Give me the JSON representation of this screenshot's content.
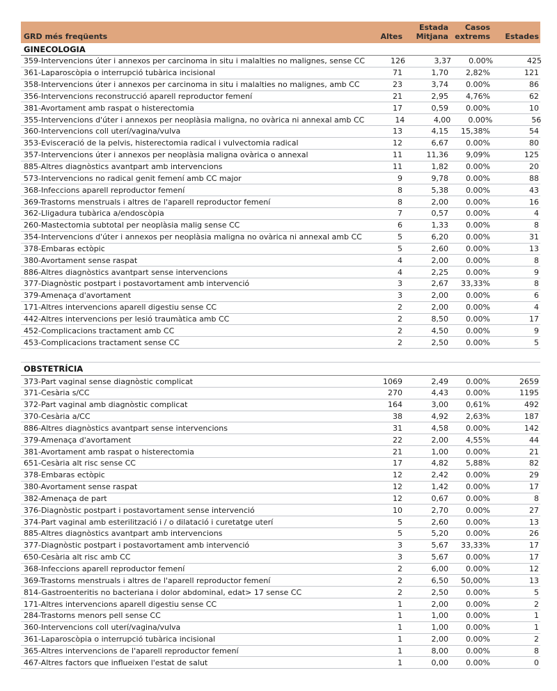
{
  "table": {
    "header_bg": "#E0A67E",
    "columns": {
      "grd": "GRD més freqüents",
      "altes": "Altes",
      "estada_line1": "Estada",
      "estada_line2": "Mitjana",
      "casos_line1": "Casos",
      "casos_line2": "extrems",
      "estades": "Estades"
    },
    "sections": [
      {
        "title": "GINECOLOGIA",
        "rows": [
          {
            "name": "359-Intervencions úter i annexos per carcinoma  in situ i malalties no malignes, sense CC",
            "altes": "126",
            "estada_mitjana": "3,37",
            "casos_extrems": "0.00%",
            "estades": "425"
          },
          {
            "name": "361-Laparoscòpia o interrupció tubàrica incisional",
            "altes": "71",
            "estada_mitjana": "1,70",
            "casos_extrems": "2,82%",
            "estades": "121"
          },
          {
            "name": "358-Intervencions úter i annexos per carcinoma  in situ i malalties no malignes, amb CC",
            "altes": "23",
            "estada_mitjana": "3,74",
            "casos_extrems": "0.00%",
            "estades": "86"
          },
          {
            "name": "356-Intervencions reconstrucció aparell reproductor femení",
            "altes": "21",
            "estada_mitjana": "2,95",
            "casos_extrems": "4,76%",
            "estades": "62"
          },
          {
            "name": "381-Avortament amb raspat o histerectomia",
            "altes": "17",
            "estada_mitjana": "0,59",
            "casos_extrems": "0.00%",
            "estades": "10"
          },
          {
            "name": "355-Intervencions d'úter i annexos per neoplàsia maligna, no ovàrica ni annexal amb CC",
            "altes": "14",
            "estada_mitjana": "4,00",
            "casos_extrems": "0.00%",
            "estades": "56"
          },
          {
            "name": "360-Intervencions coll uterí/vagina/vulva",
            "altes": "13",
            "estada_mitjana": "4,15",
            "casos_extrems": "15,38%",
            "estades": "54"
          },
          {
            "name": "353-Evisceració de la pelvis, histerectomia radical i vulvectomia radical",
            "altes": "12",
            "estada_mitjana": "6,67",
            "casos_extrems": "0.00%",
            "estades": "80"
          },
          {
            "name": "357-Intervencions úter i annexos per neoplàsia maligna ovàrica o annexal",
            "altes": "11",
            "estada_mitjana": "11,36",
            "casos_extrems": "9,09%",
            "estades": "125"
          },
          {
            "name": "885-Altres diagnòstics avantpart amb intervencions",
            "altes": "11",
            "estada_mitjana": "1,82",
            "casos_extrems": "0.00%",
            "estades": "20"
          },
          {
            "name": "573-Intervencions no radical genit femení amb CC major",
            "altes": "9",
            "estada_mitjana": "9,78",
            "casos_extrems": "0.00%",
            "estades": "88"
          },
          {
            "name": "368-Infeccions aparell reproductor femení",
            "altes": "8",
            "estada_mitjana": "5,38",
            "casos_extrems": "0.00%",
            "estades": "43"
          },
          {
            "name": "369-Trastorns menstruals i altres de l'aparell reproductor femení",
            "altes": "8",
            "estada_mitjana": "2,00",
            "casos_extrems": "0.00%",
            "estades": "16"
          },
          {
            "name": "362-Lligadura tubàrica a/endoscòpia",
            "altes": "7",
            "estada_mitjana": "0,57",
            "casos_extrems": "0.00%",
            "estades": "4"
          },
          {
            "name": "260-Mastectomia subtotal per neoplàsia malig sense CC",
            "altes": "6",
            "estada_mitjana": "1,33",
            "casos_extrems": "0.00%",
            "estades": "8"
          },
          {
            "name": "354-Intervencions d'úter i annexos per neoplàsia maligna no ovàrica ni annexal amb CC",
            "altes": "5",
            "estada_mitjana": "6,20",
            "casos_extrems": "0.00%",
            "estades": "31"
          },
          {
            "name": "378-Embaras ectòpic",
            "altes": "5",
            "estada_mitjana": "2,60",
            "casos_extrems": "0.00%",
            "estades": "13"
          },
          {
            "name": "380-Avortament sense raspat",
            "altes": "4",
            "estada_mitjana": "2,00",
            "casos_extrems": "0.00%",
            "estades": "8"
          },
          {
            "name": "886-Altres diagnòstics avantpart sense intervencions",
            "altes": "4",
            "estada_mitjana": "2,25",
            "casos_extrems": "0.00%",
            "estades": "9"
          },
          {
            "name": "377-Diagnòstic postpart i postavortament amb intervenció",
            "altes": "3",
            "estada_mitjana": "2,67",
            "casos_extrems": "33,33%",
            "estades": "8"
          },
          {
            "name": "379-Amenaça d'avortament",
            "altes": "3",
            "estada_mitjana": "2,00",
            "casos_extrems": "0.00%",
            "estades": "6"
          },
          {
            "name": "171-Altres intervencions aparell digestiu sense CC",
            "altes": "2",
            "estada_mitjana": "2,00",
            "casos_extrems": "0.00%",
            "estades": "4"
          },
          {
            "name": "442-Altres intervencions per lesió traumàtica amb CC",
            "altes": "2",
            "estada_mitjana": "8,50",
            "casos_extrems": "0.00%",
            "estades": "17"
          },
          {
            "name": "452-Complicacions tractament amb CC",
            "altes": "2",
            "estada_mitjana": "4,50",
            "casos_extrems": "0.00%",
            "estades": "9"
          },
          {
            "name": "453-Complicacions tractament sense CC",
            "altes": "2",
            "estada_mitjana": "2,50",
            "casos_extrems": "0.00%",
            "estades": "5"
          }
        ]
      },
      {
        "title": "OBSTETRÍCIA",
        "rows": [
          {
            "name": "373-Part vaginal sense diagnòstic complicat",
            "altes": "1069",
            "estada_mitjana": "2,49",
            "casos_extrems": "0.00%",
            "estades": "2659"
          },
          {
            "name": "371-Cesària s/CC",
            "altes": "270",
            "estada_mitjana": "4,43",
            "casos_extrems": "0.00%",
            "estades": "1195"
          },
          {
            "name": "372-Part vaginal amb diagnòstic complicat",
            "altes": "164",
            "estada_mitjana": "3,00",
            "casos_extrems": "0,61%",
            "estades": "492"
          },
          {
            "name": "370-Cesària a/CC",
            "altes": "38",
            "estada_mitjana": "4,92",
            "casos_extrems": "2,63%",
            "estades": "187"
          },
          {
            "name": "886-Altres diagnòstics avantpart sense intervencions",
            "altes": "31",
            "estada_mitjana": "4,58",
            "casos_extrems": "0.00%",
            "estades": "142"
          },
          {
            "name": "379-Amenaça d'avortament",
            "altes": "22",
            "estada_mitjana": "2,00",
            "casos_extrems": "4,55%",
            "estades": "44"
          },
          {
            "name": "381-Avortament amb raspat o histerectomia",
            "altes": "21",
            "estada_mitjana": "1,00",
            "casos_extrems": "0.00%",
            "estades": "21"
          },
          {
            "name": "651-Cesària alt risc sense CC",
            "altes": "17",
            "estada_mitjana": "4,82",
            "casos_extrems": "5,88%",
            "estades": "82"
          },
          {
            "name": "378-Embaras ectòpic",
            "altes": "12",
            "estada_mitjana": "2,42",
            "casos_extrems": "0.00%",
            "estades": "29"
          },
          {
            "name": "380-Avortament sense raspat",
            "altes": "12",
            "estada_mitjana": "1,42",
            "casos_extrems": "0.00%",
            "estades": "17"
          },
          {
            "name": "382-Amenaça de part",
            "altes": "12",
            "estada_mitjana": "0,67",
            "casos_extrems": "0.00%",
            "estades": "8"
          },
          {
            "name": "376-Diagnòstic postpart i postavortament sense intervenció",
            "altes": "10",
            "estada_mitjana": "2,70",
            "casos_extrems": "0.00%",
            "estades": "27"
          },
          {
            "name": "374-Part vaginal amb esterilització i / o dilatació i curetatge uterí",
            "altes": "5",
            "estada_mitjana": "2,60",
            "casos_extrems": "0.00%",
            "estades": "13"
          },
          {
            "name": "885-Altres diagnòstics avantpart amb intervencions",
            "altes": "5",
            "estada_mitjana": "5,20",
            "casos_extrems": "0.00%",
            "estades": "26"
          },
          {
            "name": "377-Diagnòstic postpart i postavortament amb intervenció",
            "altes": "3",
            "estada_mitjana": "5,67",
            "casos_extrems": "33,33%",
            "estades": "17"
          },
          {
            "name": "650-Cesària alt risc amb CC",
            "altes": "3",
            "estada_mitjana": "5,67",
            "casos_extrems": "0.00%",
            "estades": "17"
          },
          {
            "name": "368-Infeccions aparell reproductor femení",
            "altes": "2",
            "estada_mitjana": "6,00",
            "casos_extrems": "0.00%",
            "estades": "12"
          },
          {
            "name": "369-Trastorns menstruals i altres de l'aparell reproductor femení",
            "altes": "2",
            "estada_mitjana": "6,50",
            "casos_extrems": "50,00%",
            "estades": "13"
          },
          {
            "name": "814-Gastroenteritis no bacteriana i dolor abdominal, edat> 17 sense CC",
            "altes": "2",
            "estada_mitjana": "2,50",
            "casos_extrems": "0.00%",
            "estades": "5"
          },
          {
            "name": "171-Altres intervencions aparell digestiu sense CC",
            "altes": "1",
            "estada_mitjana": "2,00",
            "casos_extrems": "0.00%",
            "estades": "2"
          },
          {
            "name": "284-Trastorns menors pell sense CC",
            "altes": "1",
            "estada_mitjana": "1,00",
            "casos_extrems": "0.00%",
            "estades": "1"
          },
          {
            "name": "360-Intervencions coll uterí/vagina/vulva",
            "altes": "1",
            "estada_mitjana": "1,00",
            "casos_extrems": "0.00%",
            "estades": "1"
          },
          {
            "name": "361-Laparoscòpia o interrupció tubàrica incisional",
            "altes": "1",
            "estada_mitjana": "2,00",
            "casos_extrems": "0.00%",
            "estades": "2"
          },
          {
            "name": "365-Altres intervencions de l'aparell reproductor femení",
            "altes": "1",
            "estada_mitjana": "8,00",
            "casos_extrems": "0.00%",
            "estades": "8"
          },
          {
            "name": "467-Altres factors que influeixen l'estat de salut",
            "altes": "1",
            "estada_mitjana": "0,00",
            "casos_extrems": "0.00%",
            "estades": "0"
          }
        ]
      }
    ]
  }
}
